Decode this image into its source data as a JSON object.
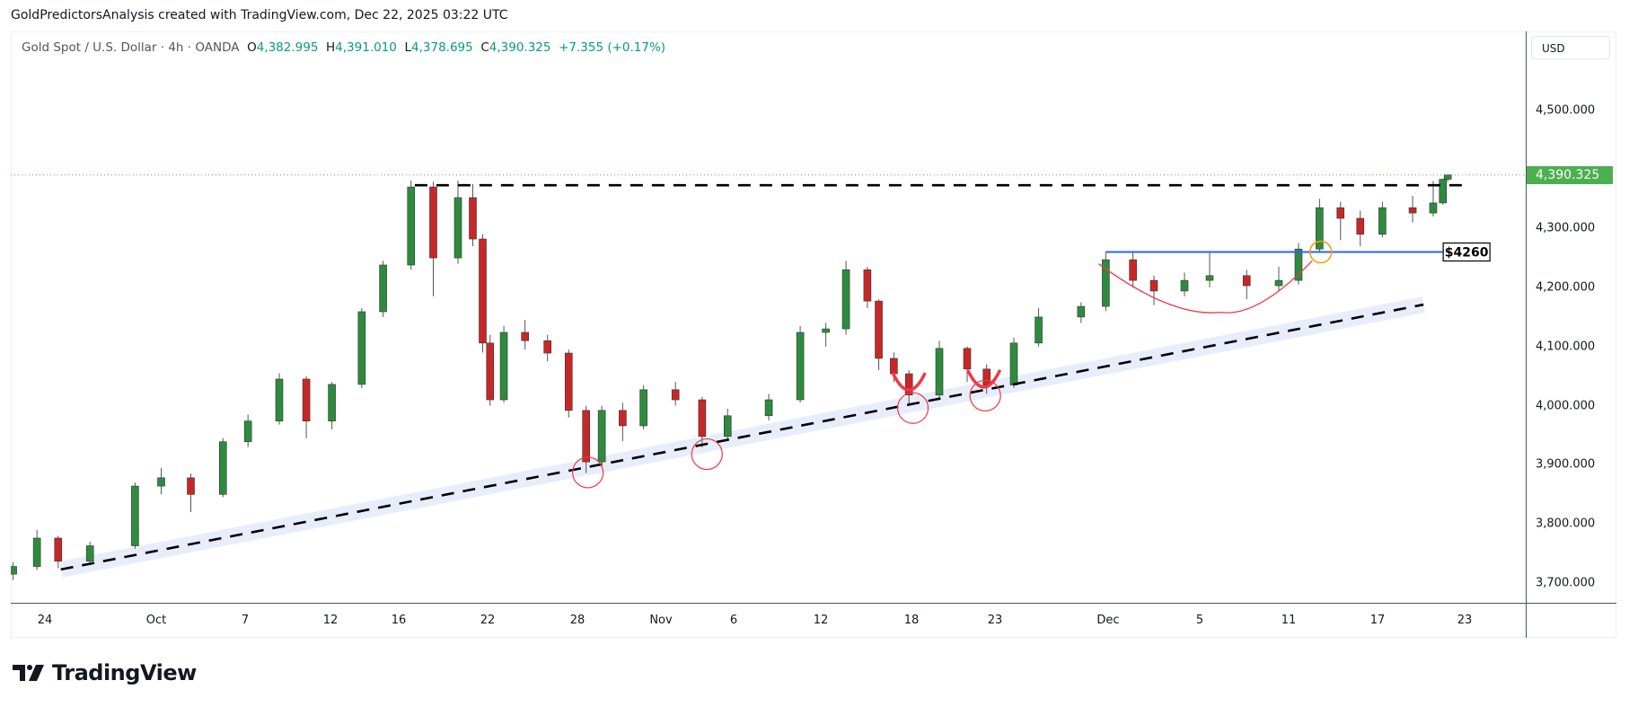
{
  "credit": "GoldPredictorsAnalysis created with TradingView.com, Dec 22, 2025 03:22 UTC",
  "legend": {
    "symbol": "Gold Spot / U.S. Dollar · 4h · OANDA",
    "open_label": "O",
    "open": "4,382.995",
    "high_label": "H",
    "high": "4,391.010",
    "low_label": "L",
    "low": "4,378.695",
    "close_label": "C",
    "close": "4,390.325",
    "change": "+7.355 (+0.17%)"
  },
  "currency": "USD",
  "last_price_label": "4,390.325",
  "brand": "TradingView",
  "colors": {
    "up": "#089981",
    "down": "#f23645",
    "up_body": "#2e8b3e",
    "down_body": "#c62828",
    "last": "#4caf50",
    "level": "#2962ff",
    "cup": "#f23645",
    "highlight": "#ff9800",
    "band": "#e8edfb"
  },
  "chart_data": {
    "type": "candlestick",
    "timeframe": "4h",
    "ylim": [
      3660,
      4580
    ],
    "price_ticks": [
      "4,500.000",
      "4,300.000",
      "4,200.000",
      "4,100.000",
      "4,000.000",
      "3,900.000",
      "3,800.000",
      "3,700.000"
    ],
    "price_tick_values": [
      4500,
      4300,
      4200,
      4100,
      4000,
      3900,
      3800,
      3700
    ],
    "time_ticks": [
      "24",
      "Oct",
      "7",
      "12",
      "16",
      "22",
      "28",
      "Nov",
      "6",
      "12",
      "18",
      "23",
      "Dec",
      "5",
      "11",
      "17",
      "23"
    ],
    "candles": [
      [
        "2025-09-22T00:00",
        3715,
        3735,
        3705,
        3728
      ],
      [
        "2025-09-23T12:00",
        3728,
        3790,
        3722,
        3776
      ],
      [
        "2025-09-24T20:00",
        3776,
        3780,
        3725,
        3737
      ],
      [
        "2025-09-26T20:00",
        3737,
        3770,
        3730,
        3763
      ],
      [
        "2025-09-29T16:00",
        3763,
        3870,
        3758,
        3864
      ],
      [
        "2025-10-01T08:00",
        3864,
        3895,
        3850,
        3878
      ],
      [
        "2025-10-03T08:00",
        3878,
        3885,
        3820,
        3850
      ],
      [
        "2025-10-05T12:00",
        3850,
        3945,
        3845,
        3939
      ],
      [
        "2025-10-07T04:00",
        3939,
        3985,
        3930,
        3974
      ],
      [
        "2025-10-09T00:00",
        3974,
        4055,
        3968,
        4045
      ],
      [
        "2025-10-10T14:00",
        4045,
        4050,
        3945,
        3974
      ],
      [
        "2025-10-12T02:00",
        3974,
        4040,
        3960,
        4036
      ],
      [
        "2025-10-13T20:00",
        4036,
        4165,
        4030,
        4159
      ],
      [
        "2025-10-15T02:00",
        4159,
        4245,
        4150,
        4238
      ],
      [
        "2025-10-16T20:00",
        4238,
        4381,
        4230,
        4370
      ],
      [
        "2025-10-18T08:00",
        4370,
        4379,
        4185,
        4250
      ],
      [
        "2025-10-20T00:00",
        4250,
        4381,
        4240,
        4352
      ],
      [
        "2025-10-21T00:00",
        4352,
        4375,
        4270,
        4282
      ],
      [
        "2025-10-21T16:00",
        4282,
        4290,
        4090,
        4106
      ],
      [
        "2025-10-22T04:00",
        4106,
        4120,
        4000,
        4010
      ],
      [
        "2025-10-23T02:00",
        4010,
        4135,
        4005,
        4124
      ],
      [
        "2025-10-24T12:00",
        4124,
        4145,
        4095,
        4110
      ],
      [
        "2025-10-26T00:00",
        4110,
        4120,
        4075,
        4089
      ],
      [
        "2025-10-27T10:00",
        4089,
        4095,
        3980,
        3992
      ],
      [
        "2025-10-28T10:00",
        3992,
        4000,
        3886,
        3905
      ],
      [
        "2025-10-29T04:00",
        3905,
        4000,
        3895,
        3992
      ],
      [
        "2025-10-30T04:00",
        3992,
        4005,
        3940,
        3966
      ],
      [
        "2025-10-31T04:00",
        3966,
        4035,
        3960,
        4027
      ],
      [
        "2025-11-02T00:00",
        4027,
        4040,
        4000,
        4010
      ],
      [
        "2025-11-03T20:00",
        4010,
        4015,
        3930,
        3948
      ],
      [
        "2025-11-05T14:00",
        3948,
        3995,
        3940,
        3983
      ],
      [
        "2025-11-08T10:00",
        3983,
        4020,
        3975,
        4010
      ],
      [
        "2025-11-10T14:00",
        4010,
        4135,
        4005,
        4124
      ],
      [
        "2025-11-12T08:00",
        4124,
        4140,
        4100,
        4130
      ],
      [
        "2025-11-13T16:00",
        4130,
        4245,
        4120,
        4230
      ],
      [
        "2025-11-15T02:00",
        4230,
        4235,
        4165,
        4177
      ],
      [
        "2025-11-15T20:00",
        4177,
        4180,
        4060,
        4080
      ],
      [
        "2025-11-16T20:00",
        4080,
        4090,
        4040,
        4054
      ],
      [
        "2025-11-17T20:00",
        4054,
        4060,
        4002,
        4018
      ],
      [
        "2025-11-19T16:00",
        4018,
        4110,
        4010,
        4097
      ],
      [
        "2025-11-21T08:00",
        4097,
        4100,
        4040,
        4062
      ],
      [
        "2025-11-22T12:00",
        4062,
        4070,
        4020,
        4035
      ],
      [
        "2025-11-24T08:00",
        4035,
        4115,
        4030,
        4106
      ],
      [
        "2025-11-26T02:00",
        4106,
        4165,
        4100,
        4150
      ],
      [
        "2025-11-29T02:00",
        4150,
        4175,
        4140,
        4168
      ],
      [
        "2025-11-30T20:00",
        4168,
        4260,
        4160,
        4247
      ],
      [
        "2025-12-02T02:00",
        4247,
        4260,
        4200,
        4212
      ],
      [
        "2025-12-03T00:00",
        4212,
        4220,
        4170,
        4194
      ],
      [
        "2025-12-04T08:00",
        4194,
        4225,
        4185,
        4212
      ],
      [
        "2025-12-05T16:00",
        4212,
        4260,
        4200,
        4220
      ],
      [
        "2025-12-08T04:00",
        4220,
        4230,
        4180,
        4203
      ],
      [
        "2025-12-10T08:00",
        4203,
        4235,
        4195,
        4212
      ],
      [
        "2025-12-11T16:00",
        4212,
        4275,
        4205,
        4265
      ],
      [
        "2025-12-13T02:00",
        4265,
        4350,
        4260,
        4335
      ],
      [
        "2025-12-14T12:00",
        4335,
        4345,
        4280,
        4317
      ],
      [
        "2025-12-15T20:00",
        4317,
        4330,
        4270,
        4290
      ],
      [
        "2025-12-17T08:00",
        4290,
        4345,
        4285,
        4335
      ],
      [
        "2025-12-19T10:00",
        4335,
        4355,
        4310,
        4326
      ],
      [
        "2025-12-20T20:00",
        4326,
        4380,
        4320,
        4343
      ],
      [
        "2025-12-21T12:00",
        4343,
        4384,
        4340,
        4383
      ],
      [
        "2025-12-21T20:00",
        4382.995,
        4391.01,
        4378.695,
        4390.325
      ]
    ],
    "last_price": 4390.325,
    "annotations": {
      "resistance": {
        "price": 4373,
        "from": "2025-10-17T02:00",
        "to": "2025-12-23T00:00",
        "style": "dashed"
      },
      "trendline": {
        "from": [
          "2025-09-25T00:00",
          3723
        ],
        "to": [
          "2025-12-20T04:00",
          4171
        ],
        "style": "dashed",
        "band": true
      },
      "level": {
        "price": 4260,
        "from": "2025-11-30T20:00",
        "to": "2025-12-21T20:00",
        "label": "$4260"
      },
      "touch_circles": [
        [
          "2025-10-28T12:00",
          3887
        ],
        [
          "2025-11-04T04:00",
          3918
        ],
        [
          "2025-11-18T02:00",
          3996
        ],
        [
          "2025-11-22T10:00",
          4017
        ]
      ],
      "mini_cups": [
        [
          "2025-11-17T20:00",
          4025
        ],
        [
          "2025-11-22T08:00",
          4030
        ]
      ],
      "cup": {
        "from": [
          "2025-11-30T08:00",
          4240
        ],
        "bottom": [
          "2025-12-06T10:00",
          4158
        ],
        "to": [
          "2025-12-12T14:00",
          4245
        ]
      },
      "breakout_circle": [
        "2025-12-13T04:00",
        4260
      ]
    }
  }
}
